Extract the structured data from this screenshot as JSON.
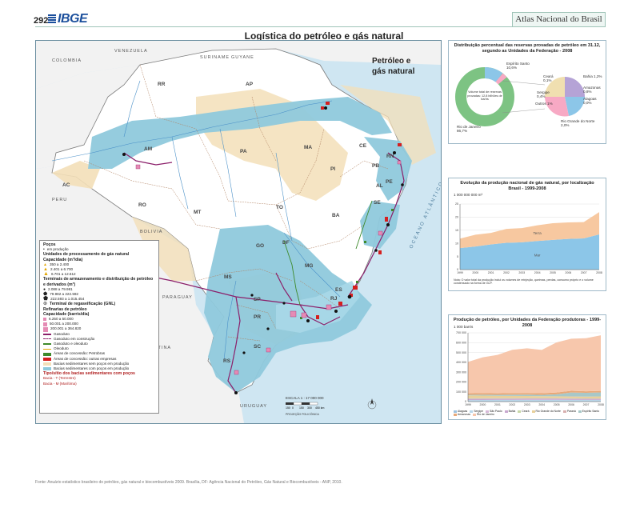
{
  "header": {
    "page_number": "292",
    "logo_text": "IBGE",
    "atlas_title": "Atlas Nacional do Brasil",
    "main_title": "Logística do petróleo e gás natural"
  },
  "map": {
    "inset_title_line1": "Petróleo e",
    "inset_title_line2": "gás natural",
    "states": [
      "RR",
      "AP",
      "AM",
      "PA",
      "MA",
      "CE",
      "RN",
      "PB",
      "PE",
      "AL",
      "SE",
      "PI",
      "AC",
      "RO",
      "MT",
      "TO",
      "BA",
      "GO",
      "DF",
      "MG",
      "ES",
      "MS",
      "SP",
      "RJ",
      "PR",
      "SC",
      "RS"
    ],
    "countries": [
      "VENEZUELA",
      "COLOMBIA",
      "GUYANE",
      "SURINAME",
      "PERU",
      "BOLIVIA",
      "PARAGUAY",
      "ARGENTINA",
      "URUGUAY"
    ],
    "ocean_label": "OCEANO ATLÂNTICO",
    "scale_title": "ESCALA 1 : 17 000 000",
    "scale_ticks": [
      "150",
      "0",
      "150",
      "300",
      "450 km"
    ],
    "projection": "PROJEÇÃO POLICÔNICA",
    "colors": {
      "basin_production": "#8fc9dc",
      "basin_no_production": "#f3dfb8",
      "concession_green": "#3e8a2c",
      "concession_red": "#d51f1f",
      "pipeline": "#8b1f6a",
      "land": "#ffffff",
      "sea": "#cfe6f2"
    }
  },
  "legend": {
    "title_wells": "Poços",
    "wells_item": "em produção",
    "title_units": "Unidades de processamento de gás natural",
    "units_capacity": "Capacidade (m³/dia)",
    "units_classes": [
      "350 a 2.400",
      "2.401 a 6.700",
      "6.701 a 12.612"
    ],
    "title_terminals": "Terminais de armazenamento e distribuição de petróleo e derivados (m³)",
    "terminal_classes": [
      "2.088 a 79.981",
      "79.982 a 222.592",
      "222.593 a 1.015.454"
    ],
    "terminal_regas": "Terminal de regaseificação (GNL)",
    "title_refineries": "Refinarias de petróleo",
    "refineries_capacity": "Capacidade (barris/dia)",
    "refinery_classes": [
      "6.250 a 50.000",
      "50.001 a 200.000",
      "200.001 a 364.820"
    ],
    "line_items": [
      "Gasoduto",
      "Gasoduto em construção",
      "Gasoduto e oleoduto",
      "Oleoduto"
    ],
    "area_items": [
      "Áreas de concessão: Petrobras",
      "Áreas de concessão: outras empresas",
      "Bacias sedimentares sem poços em produção",
      "Bacias sedimentares com poços em produção"
    ],
    "notes_title": "Tipo/sítio dos bacias sedimentares com poços",
    "notes": [
      "Bacia - T   (Terrestre)",
      "Bacia - M   (Marítima)"
    ]
  },
  "panel1": {
    "title_line1": "Distribuição percentual das reservas provadas de petróleo em 31.12,",
    "title_line2": "segundo as Unidades da Federação - 2008",
    "ring_center": "Volume total de reservas provadas: 12,8 bilhões de barris",
    "labels": [
      "Rio de Janeiro 86,7%",
      "Espírito Santo 10,6%",
      "Bahia 1,2%",
      "Amazonas 0,8%",
      "Ceará 0,1%",
      "Sergipe 0,4%",
      "Alagoas 0,0%",
      "Rio Grande do Norte 2,0%",
      "Outros 1%"
    ]
  },
  "chart_data": [
    {
      "type": "area",
      "title": "Evolução da produção nacional de gás natural, por localização Brasil - 1999-2008",
      "ylabel": "1 000 000 000 m³",
      "x": [
        "1999",
        "2000",
        "2001",
        "2002",
        "2003",
        "2004",
        "2005",
        "2006",
        "2007",
        "2008"
      ],
      "ylim": [
        0,
        25
      ],
      "yticks": [
        0,
        5,
        10,
        15,
        20,
        25
      ],
      "series": [
        {
          "name": "Mar",
          "color": "#8cc6e8",
          "values": [
            8.2,
            8.8,
            9.6,
            10.2,
            10.4,
            10.9,
            11.3,
            11.7,
            11.9,
            13.4
          ]
        },
        {
          "name": "Terra",
          "color": "#f7c8a0",
          "values": [
            3.6,
            4.5,
            4.4,
            5.3,
            5.4,
            6.0,
            6.4,
            6.3,
            6.2,
            8.5
          ]
        }
      ],
      "note": "Nota: O valor total da produção inclui os volumes de reinjeção, queimas, perdas, consumo próprio e o volume condensado na forma de GLP."
    },
    {
      "type": "area",
      "title": "Produção de petróleo, por Unidades da Federação produtoras - 1999-2008",
      "ylabel": "1 000 barris",
      "x": [
        "1999",
        "2000",
        "2001",
        "2002",
        "2003",
        "2004",
        "2005",
        "2006",
        "2007",
        "2008"
      ],
      "ylim": [
        0,
        700000
      ],
      "yticks": [
        0,
        100000,
        200000,
        300000,
        400000,
        500000,
        600000,
        700000
      ],
      "ytick_labels": [
        "0",
        "100 000",
        "200 000",
        "300 000",
        "400 000",
        "500 000",
        "600 000",
        "700 000"
      ],
      "series": [
        {
          "name": "Alagoas",
          "color": "#9cc0de",
          "values": [
            2500,
            2700,
            2800,
            2800,
            2700,
            2700,
            2600,
            2500,
            2500,
            2400
          ]
        },
        {
          "name": "Sergipe",
          "color": "#b9d7ea",
          "values": [
            13000,
            13500,
            14000,
            14500,
            15000,
            15000,
            15500,
            15000,
            14500,
            14500
          ]
        },
        {
          "name": "São Paulo",
          "color": "#d7b8d8",
          "values": [
            200,
            200,
            200,
            200,
            200,
            200,
            200,
            250,
            250,
            300
          ]
        },
        {
          "name": "Bahia",
          "color": "#c8a8cf",
          "values": [
            14000,
            13800,
            13600,
            13500,
            13300,
            13200,
            13000,
            12800,
            12500,
            12200
          ]
        },
        {
          "name": "Ceará",
          "color": "#c8d8a8",
          "values": [
            4000,
            3600,
            3500,
            3400,
            3300,
            3000,
            2800,
            2700,
            2500,
            2400
          ]
        },
        {
          "name": "Rio Grande do Norte",
          "color": "#e8d09a",
          "values": [
            29000,
            27000,
            25000,
            23000,
            22000,
            21000,
            20000,
            19000,
            18500,
            21000
          ]
        },
        {
          "name": "Paraná",
          "color": "#d8b0b0",
          "values": [
            300,
            300,
            300,
            300,
            300,
            300,
            300,
            300,
            300,
            300
          ]
        },
        {
          "name": "Espírito Santo",
          "color": "#a8c8c8",
          "values": [
            6000,
            9000,
            10000,
            13000,
            14000,
            13000,
            20000,
            40000,
            38000,
            41000
          ]
        },
        {
          "name": "Amazonas",
          "color": "#e8a878",
          "values": [
            15000,
            16000,
            15500,
            16000,
            17000,
            17500,
            18000,
            17000,
            16000,
            15000
          ]
        },
        {
          "name": "Rio de Janeiro",
          "color": "#f7c7ac",
          "values": [
            320000,
            365000,
            390000,
            440000,
            455000,
            440000,
            510000,
            530000,
            540000,
            565000
          ]
        }
      ]
    }
  ],
  "source": "Fonte: Anuário estatístico brasileiro do petróleo, gás natural e biocombustíveis 2009. Brasília, DF: Agência Nacional do Petróleo, Gás Natural e Biocombustíveis - ANP, 2010."
}
